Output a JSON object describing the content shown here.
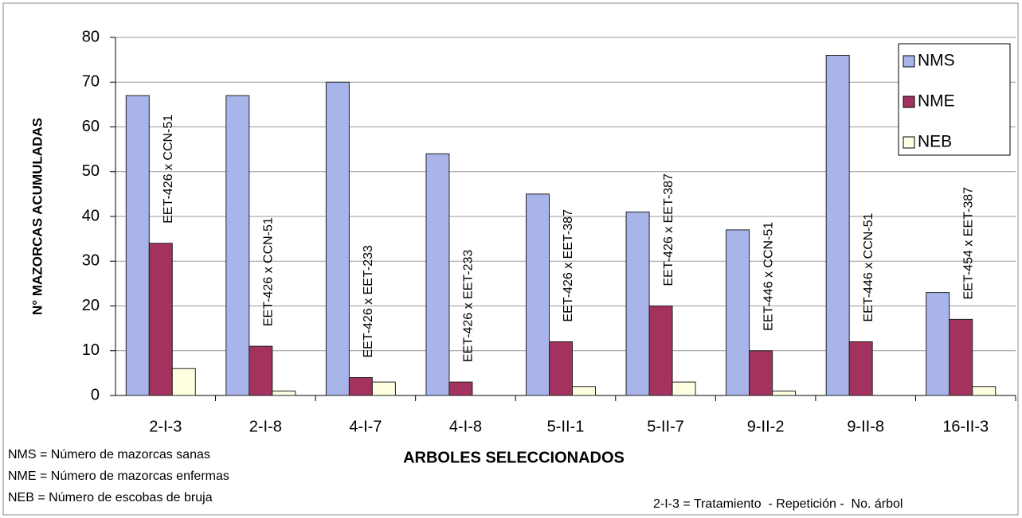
{
  "chart_data": {
    "type": "bar",
    "x_label": "ARBOLES SELECCIONADOS",
    "y_label": "N° MAZORCAS ACUMULADAS",
    "categories": [
      "2-I-3",
      "2-I-8",
      "4-I-7",
      "4-I-8",
      "5-II-1",
      "5-II-7",
      "9-II-2",
      "9-II-8",
      "16-II-3"
    ],
    "series": [
      {
        "name": "NMS",
        "color": "#a9b5ea",
        "values": [
          67,
          67,
          70,
          54,
          45,
          41,
          37,
          76,
          23
        ]
      },
      {
        "name": "NME",
        "color": "#a3325e",
        "values": [
          34,
          11,
          4,
          3,
          12,
          20,
          10,
          12,
          17
        ]
      },
      {
        "name": "NEB",
        "color": "#ffffe2",
        "values": [
          6,
          1,
          3,
          0,
          2,
          3,
          1,
          0,
          2
        ]
      }
    ],
    "bar_annotations": [
      "EET-426 x CCN-51",
      "EET-426 x CCN-51",
      "EET-426 x EET-233",
      "EET-426 x EET-233",
      "EET-426 x EET-387",
      "EET-426 x EET-387",
      "EET-446 x CCN-51",
      "EET-446 x CCN-51",
      "EET-454 x EET-387"
    ],
    "ylim": [
      0,
      80
    ],
    "yticks": [
      0,
      10,
      20,
      30,
      40,
      50,
      60,
      70,
      80
    ],
    "grid": true,
    "legend": "top-right",
    "notes": [
      "NMS = Número de mazorcas sanas",
      "NME = Número de mazorcas enfermas",
      "NEB = Número de escobas de bruja"
    ],
    "footnote": "2-I-3 = Tratamiento  - Repetición -  No. árbol"
  }
}
